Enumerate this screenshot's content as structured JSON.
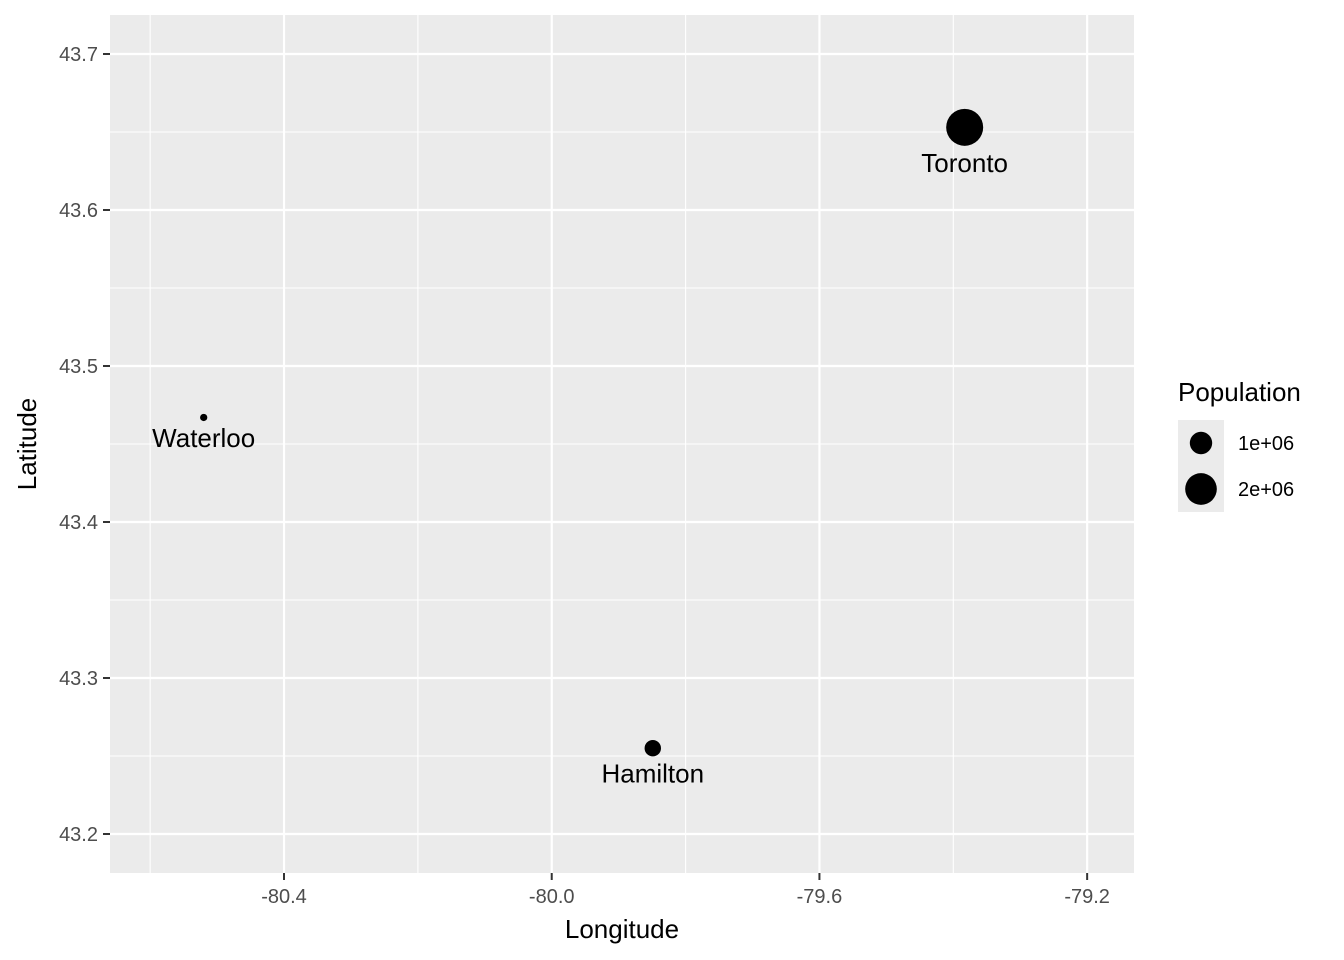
{
  "chart_data": {
    "type": "scatter",
    "xlabel": "Longitude",
    "ylabel": "Latitude",
    "xlim": [
      -80.66,
      -79.13
    ],
    "ylim": [
      43.175,
      43.725
    ],
    "x_ticks": [
      -80.4,
      -80.0,
      -79.6,
      -79.2
    ],
    "x_tick_labels": [
      "-80.4",
      "-80.0",
      "-79.6",
      "-79.2"
    ],
    "y_ticks": [
      43.2,
      43.3,
      43.4,
      43.5,
      43.6,
      43.7
    ],
    "y_tick_labels": [
      "43.2",
      "43.3",
      "43.4",
      "43.5",
      "43.6",
      "43.7"
    ],
    "grid": true,
    "points": [
      {
        "label": "Toronto",
        "x": -79.383,
        "y": 43.653,
        "population": 2731571
      },
      {
        "label": "Waterloo",
        "x": -80.52,
        "y": 43.467,
        "population": 104986
      },
      {
        "label": "Hamilton",
        "x": -79.849,
        "y": 43.255,
        "population": 536917
      }
    ],
    "legend": {
      "title": "Population",
      "position": "right",
      "entries": [
        {
          "label": "1e+06",
          "value": 1000000
        },
        {
          "label": "2e+06",
          "value": 2000000
        }
      ]
    },
    "colors": {
      "panel": "#ebebeb",
      "grid": "#ffffff",
      "point": "#000000"
    }
  }
}
